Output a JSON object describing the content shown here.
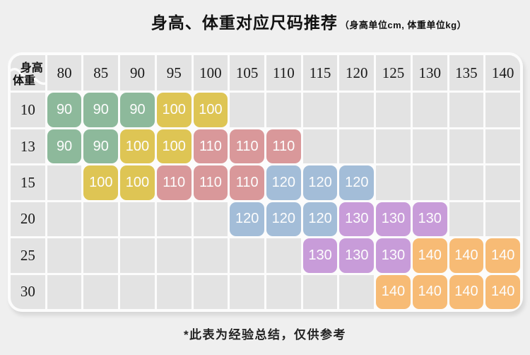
{
  "page": {
    "background": "#efefef",
    "title": "身高、体重对应尺码推荐",
    "title_note": "（身高单位cm, 体重单位kg）",
    "footnote": "*此表为经验总结，仅供参考"
  },
  "chart_data": {
    "type": "table",
    "title": "身高、体重对应尺码推荐",
    "units_note": "身高单位cm, 体重单位kg",
    "corner": {
      "top_label": "身高",
      "bottom_label": "体重"
    },
    "height_columns": [
      80,
      85,
      90,
      95,
      100,
      105,
      110,
      115,
      120,
      125,
      130,
      135,
      140
    ],
    "weight_rows": [
      10,
      13,
      15,
      20,
      25,
      30
    ],
    "cells": [
      [
        90,
        90,
        90,
        100,
        100,
        null,
        null,
        null,
        null,
        null,
        null,
        null,
        null
      ],
      [
        90,
        90,
        100,
        100,
        110,
        110,
        110,
        null,
        null,
        null,
        null,
        null,
        null
      ],
      [
        null,
        100,
        100,
        110,
        110,
        110,
        120,
        120,
        120,
        null,
        null,
        null,
        null
      ],
      [
        null,
        null,
        null,
        null,
        null,
        120,
        120,
        120,
        130,
        130,
        130,
        null,
        null
      ],
      [
        null,
        null,
        null,
        null,
        null,
        null,
        null,
        130,
        130,
        130,
        140,
        140,
        140
      ],
      [
        null,
        null,
        null,
        null,
        null,
        null,
        null,
        null,
        null,
        140,
        140,
        140,
        140
      ]
    ],
    "size_colors": {
      "90": "#8db99b",
      "100": "#dec554",
      "110": "#d9989a",
      "120": "#a3bdd8",
      "130": "#c89cd9",
      "140": "#f7bb75"
    },
    "cell_background": "#e3e3e3",
    "footnote": "*此表为经验总结，仅供参考"
  }
}
